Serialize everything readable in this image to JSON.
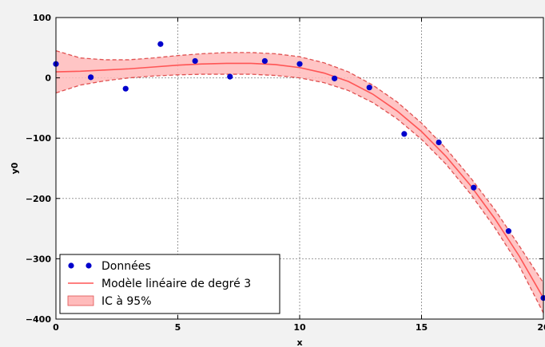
{
  "chart_data": {
    "type": "scatter",
    "xlabel": "x",
    "ylabel": "y0",
    "xlim": [
      0,
      20
    ],
    "ylim": [
      -400,
      100
    ],
    "xticks": [
      0,
      5,
      10,
      15,
      20
    ],
    "yticks": [
      100,
      0,
      -100,
      -200,
      -300,
      -400
    ],
    "xtick_labels": [
      "0",
      "5",
      "10",
      "15",
      "20"
    ],
    "ytick_labels": [
      "100",
      "0",
      "−100",
      "−200",
      "−300",
      "−400"
    ],
    "grid": true,
    "legend_position": "lower-left",
    "colors": {
      "points": "#0000cc",
      "model_line": "#ff5555",
      "ci_fill": "#ffbbbb",
      "ci_edge": "#e05050"
    },
    "series": [
      {
        "name": "Données",
        "kind": "points",
        "x": [
          0.0,
          1.43,
          2.86,
          4.29,
          5.71,
          7.14,
          8.57,
          10.0,
          11.43,
          12.86,
          14.29,
          15.71,
          17.14,
          18.57,
          20.0
        ],
        "y": [
          23,
          1,
          -18,
          56,
          28,
          2,
          28,
          23,
          -1,
          -16,
          -93,
          -107,
          -182,
          -254,
          -365
        ]
      },
      {
        "name": "Modèle linéaire de degré 3",
        "kind": "line",
        "x": [
          0,
          1,
          2,
          3,
          4,
          5,
          6,
          7,
          8,
          9,
          10,
          11,
          12,
          13,
          14,
          15,
          16,
          17,
          18,
          19,
          20
        ],
        "y": [
          10,
          11,
          13,
          15,
          18,
          21,
          23,
          24,
          24,
          22,
          17,
          8,
          -6,
          -27,
          -55,
          -89,
          -130,
          -178,
          -233,
          -295,
          -365
        ]
      },
      {
        "name": "IC à 95%",
        "kind": "band",
        "x": [
          0,
          1,
          2,
          3,
          4,
          5,
          6,
          7,
          8,
          9,
          10,
          11,
          12,
          13,
          14,
          15,
          16,
          17,
          18,
          19,
          20
        ],
        "lower": [
          -25,
          -12,
          -5,
          0,
          3,
          5,
          6,
          6,
          6,
          4,
          0,
          -8,
          -21,
          -41,
          -68,
          -102,
          -143,
          -192,
          -248,
          -311,
          -390
        ],
        "upper": [
          45,
          33,
          30,
          30,
          33,
          37,
          40,
          42,
          42,
          40,
          35,
          25,
          10,
          -12,
          -40,
          -75,
          -117,
          -165,
          -218,
          -278,
          -340
        ]
      }
    ]
  }
}
